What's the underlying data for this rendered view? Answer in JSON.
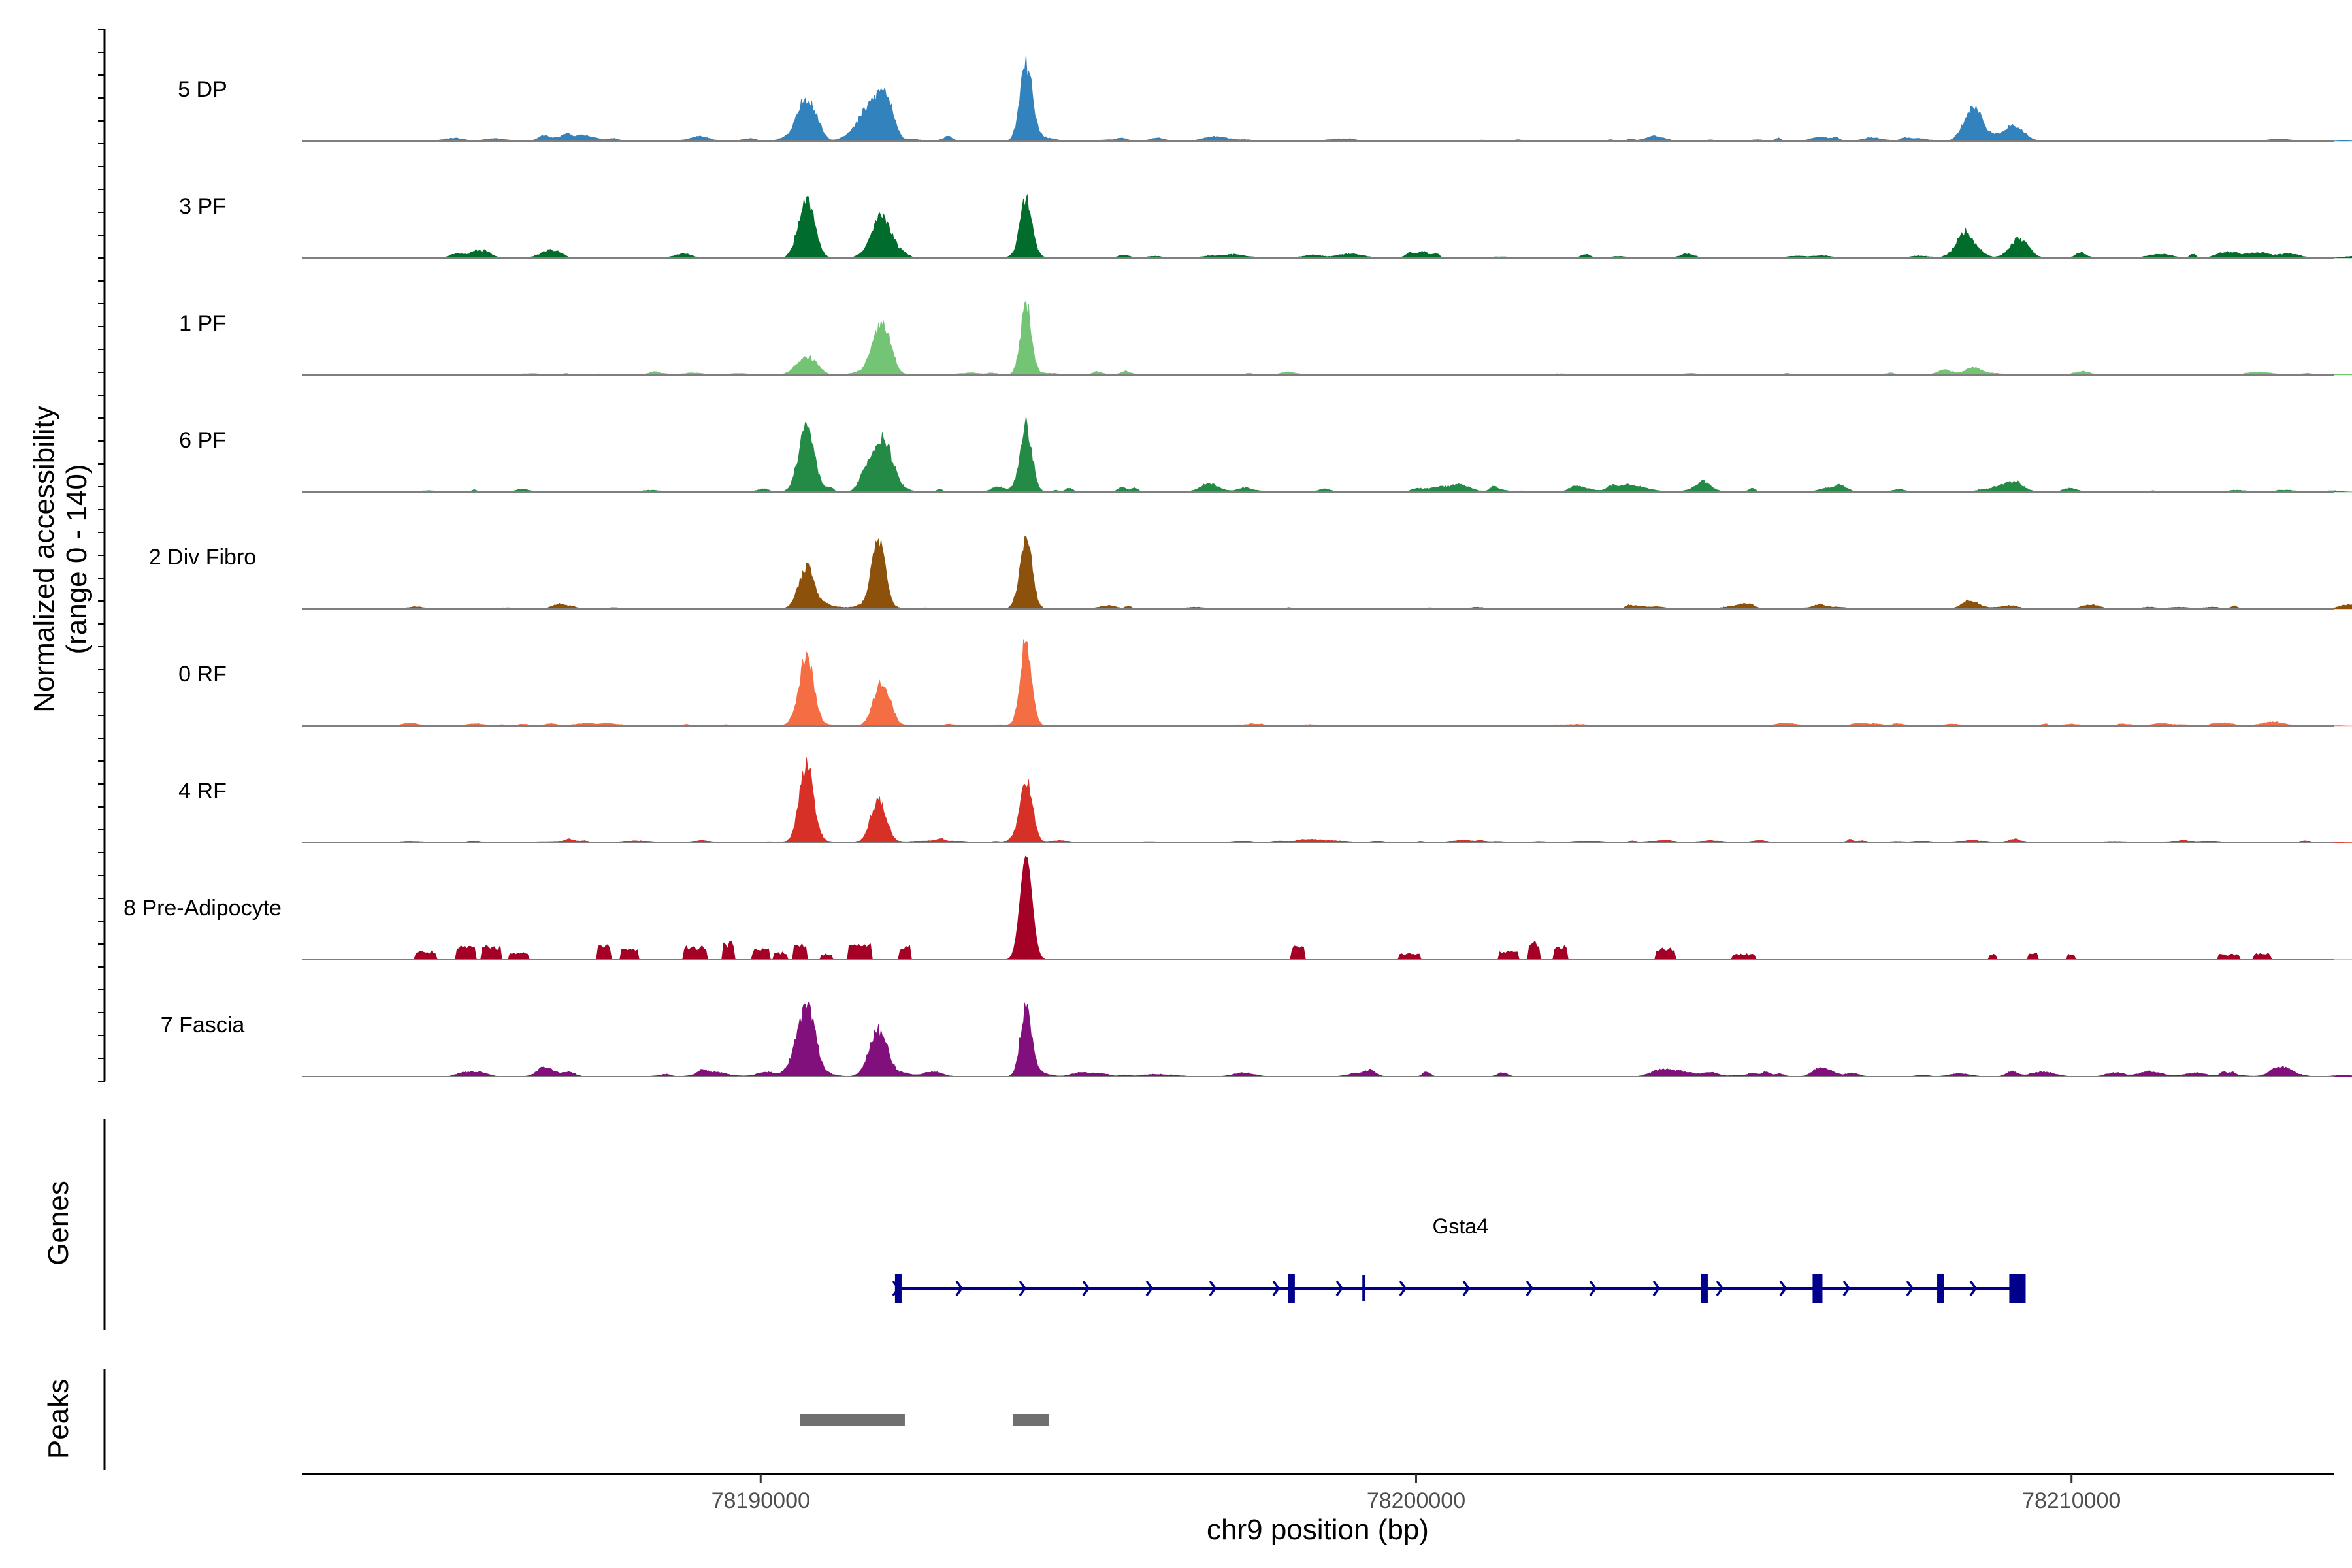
{
  "chart_data": {
    "type": "coverage",
    "title": "",
    "chromosome": "chr9",
    "xlabel": "chr9 position (bp)",
    "xlim": [
      78183000,
      78214000
    ],
    "xticks": [
      78190000,
      78200000,
      78210000
    ],
    "xtick_labels": [
      "78190000",
      "78200000",
      "78210000"
    ],
    "ylabel_line1": "Normalized accessibility",
    "ylabel_line2": "(range 0 - 140)",
    "ylim": [
      0,
      140
    ],
    "data_range": [
      78184500,
      78214400
    ],
    "tracks": [
      {
        "name": "5 DP",
        "color": "#3182bd",
        "peaks": [
          [
            78190700,
            58,
            140
          ],
          [
            78191650,
            40,
            160
          ],
          [
            78191900,
            55,
            120
          ],
          [
            78194050,
            95,
            90
          ],
          [
            78208500,
            42,
            140
          ],
          [
            78209100,
            20,
            160
          ]
        ],
        "noise": 5,
        "sparse": false,
        "seed": 11
      },
      {
        "name": "3 PF",
        "color": "#006d2c",
        "peaks": [
          [
            78190700,
            82,
            120
          ],
          [
            78191850,
            55,
            150
          ],
          [
            78194050,
            78,
            90
          ],
          [
            78208400,
            28,
            160
          ],
          [
            78209200,
            26,
            140
          ]
        ],
        "noise": 6,
        "sparse": false,
        "seed": 23
      },
      {
        "name": "1 PF",
        "color": "#74c476",
        "peaks": [
          [
            78190700,
            22,
            150
          ],
          [
            78191850,
            65,
            130
          ],
          [
            78194050,
            92,
            80
          ],
          [
            78208500,
            10,
            120
          ]
        ],
        "noise": 3,
        "sparse": false,
        "seed": 37
      },
      {
        "name": "6 PF",
        "color": "#238b45",
        "peaks": [
          [
            78190700,
            85,
            120
          ],
          [
            78191850,
            68,
            130
          ],
          [
            78191600,
            22,
            100
          ],
          [
            78194050,
            88,
            90
          ],
          [
            78209000,
            10,
            200
          ]
        ],
        "noise": 6,
        "sparse": false,
        "seed": 41
      },
      {
        "name": "2 Div Fibro",
        "color": "#8c510a",
        "peaks": [
          [
            78190700,
            55,
            120
          ],
          [
            78191800,
            90,
            100
          ],
          [
            78194050,
            88,
            90
          ],
          [
            78208500,
            8,
            120
          ]
        ],
        "noise": 4,
        "sparse": false,
        "seed": 53
      },
      {
        "name": "0 RF",
        "color": "#f46d43",
        "peaks": [
          [
            78190700,
            95,
            110
          ],
          [
            78191850,
            58,
            120
          ],
          [
            78194050,
            115,
            85
          ]
        ],
        "noise": 3,
        "sparse": false,
        "seed": 67
      },
      {
        "name": "4 RF",
        "color": "#d73027",
        "peaks": [
          [
            78190700,
            100,
            110
          ],
          [
            78191800,
            55,
            120
          ],
          [
            78194050,
            82,
            95
          ]
        ],
        "noise": 4,
        "sparse": false,
        "seed": 79
      },
      {
        "name": "8 Pre-Adipocyte",
        "color": "#a50026",
        "peaks": [
          [
            78194050,
            140,
            90
          ]
        ],
        "noise": 0,
        "sparse": true,
        "seed": 83
      },
      {
        "name": "7 Fascia",
        "color": "#810f7c",
        "peaks": [
          [
            78190700,
            95,
            130
          ],
          [
            78191800,
            60,
            140
          ],
          [
            78194050,
            90,
            85
          ],
          [
            78213200,
            14,
            150
          ]
        ],
        "noise": 7,
        "sparse": false,
        "seed": 97
      }
    ],
    "genes_label": "Genes",
    "gene": {
      "name": "Gsta4",
      "color": "#00008b",
      "start": 78192050,
      "end": 78209300,
      "strand": "+",
      "exons": [
        [
          78192050,
          78192150
        ],
        [
          78198050,
          78198150
        ],
        [
          78204350,
          78204450
        ],
        [
          78206050,
          78206200
        ],
        [
          78207950,
          78208050
        ],
        [
          78209050,
          78209300
        ]
      ],
      "small_ticks": [
        78199200
      ]
    },
    "peaks_label": "Peaks",
    "peak_regions": [
      [
        78190600,
        78192200
      ],
      [
        78193850,
        78194400
      ]
    ],
    "peak_color": "#707070"
  }
}
